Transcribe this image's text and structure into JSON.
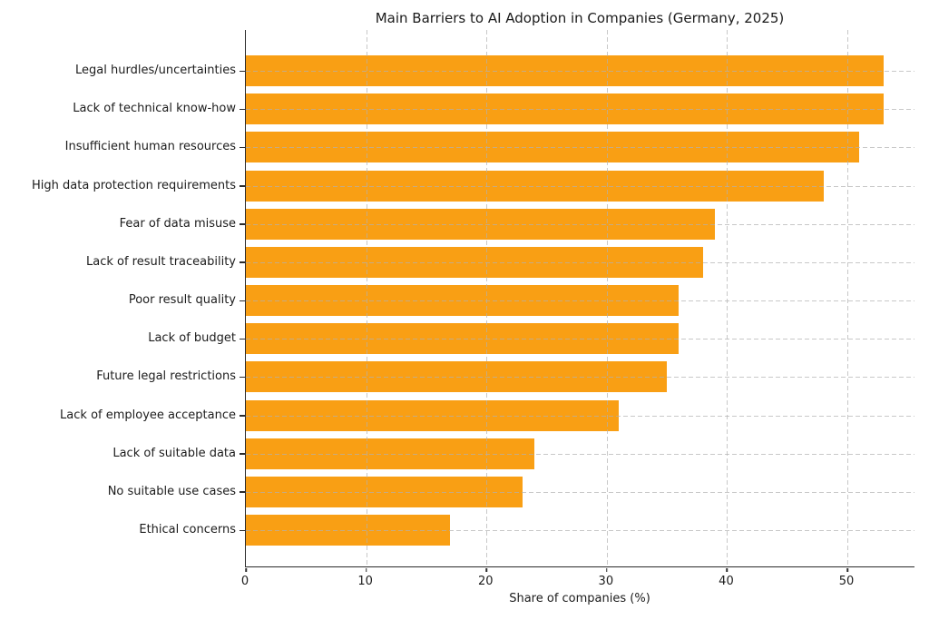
{
  "chart_data": {
    "type": "bar",
    "orientation": "horizontal",
    "title": "Main Barriers to AI Adoption in Companies (Germany, 2025)",
    "xlabel": "Share of companies (%)",
    "ylabel": "",
    "categories": [
      "Legal hurdles/uncertainties",
      "Lack of technical know-how",
      "Insufficient human resources",
      "High data protection requirements",
      "Fear of data misuse",
      "Lack of result traceability",
      "Poor result quality",
      "Lack of budget",
      "Future legal restrictions",
      "Lack of employee acceptance",
      "Lack of suitable data",
      "No suitable use cases",
      "Ethical concerns"
    ],
    "values": [
      53,
      53,
      51,
      48,
      39,
      38,
      36,
      36,
      35,
      31,
      24,
      23,
      17
    ],
    "xticks": [
      0,
      10,
      20,
      30,
      40,
      50
    ],
    "xlim": [
      0,
      55.65
    ],
    "grid": true,
    "grid_linestyle": "dashed",
    "grid_color": "#b0b0b0",
    "bar_color": "#F99F14",
    "spine_color": "#2b2b2b",
    "background_color": "#ffffff",
    "legend": null
  }
}
